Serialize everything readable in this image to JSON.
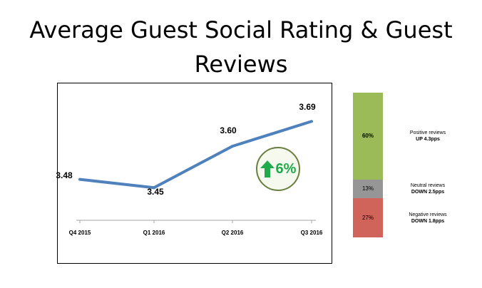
{
  "title": "Average Guest Social Rating & Guest Reviews",
  "colors": {
    "line": "#4f81bd",
    "positive": "#9bbb59",
    "neutral": "#969696",
    "negative": "#d0645a",
    "badge_arrow": "#1faa4b",
    "badge_border": "#6a7f3f"
  },
  "growth_badge": {
    "icon": "up-arrow-icon",
    "text": "6%"
  },
  "chart_data": [
    {
      "type": "line",
      "categories": [
        "Q4 2015",
        "Q1 2016",
        "Q2 2016",
        "Q3 2016"
      ],
      "values": [
        3.48,
        3.45,
        3.6,
        3.69
      ],
      "value_labels": [
        "3.48",
        "3.45",
        "3.60",
        "3.69"
      ],
      "title": "",
      "xlabel": "",
      "ylabel": "",
      "ylim": [
        3.35,
        3.75
      ],
      "grid": false
    },
    {
      "type": "bar",
      "stacked": true,
      "categories": [
        ""
      ],
      "series": [
        {
          "name": "Positive reviews",
          "values": [
            60
          ],
          "value_label": "60%",
          "change": "UP 4.3pps"
        },
        {
          "name": "Neutral reviews",
          "values": [
            13
          ],
          "value_label": "13%",
          "change": "DOWN 2.5pps"
        },
        {
          "name": "Negative reviews",
          "values": [
            27
          ],
          "value_label": "27%",
          "change": "DOWN 1.8pps"
        }
      ],
      "ylim": [
        0,
        100
      ]
    }
  ]
}
